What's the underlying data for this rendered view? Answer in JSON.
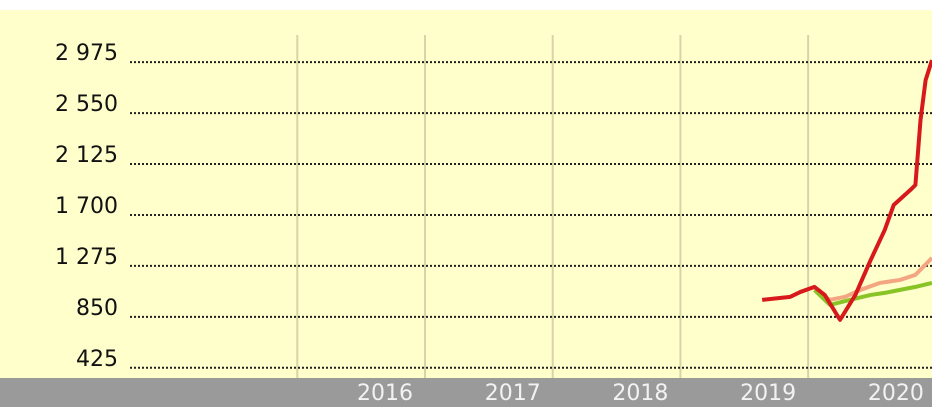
{
  "chart_data": {
    "type": "line",
    "xlim": [
      2014.69,
      2020.97
    ],
    "xticks": [
      2016,
      2017,
      2018,
      2019,
      2020
    ],
    "ylim": [
      340,
      3410
    ],
    "yticks": [
      {
        "value": 425,
        "label": "425"
      },
      {
        "value": 850,
        "label": "850"
      },
      {
        "value": 1275,
        "label": "1 275"
      },
      {
        "value": 1700,
        "label": "1 700"
      },
      {
        "value": 2125,
        "label": "2 125"
      },
      {
        "value": 2550,
        "label": "2 550"
      },
      {
        "value": 2975,
        "label": "2 975"
      }
    ],
    "grid": true,
    "series": [
      {
        "color": "#f4a582",
        "x": [
          2020.05,
          2020.17,
          2020.29,
          2020.41,
          2020.56,
          2020.72,
          2020.84,
          2020.97
        ],
        "values": [
          1075,
          992,
          1017,
          1075,
          1133,
          1158,
          1200,
          1342
        ]
      },
      {
        "color": "#88c425",
        "x": [
          2020.05,
          2020.17,
          2020.33,
          2020.49,
          2020.6,
          2020.72,
          2020.84,
          2020.97
        ],
        "values": [
          1075,
          950,
          992,
          1033,
          1050,
          1075,
          1100,
          1133
        ]
      },
      {
        "color": "#d7191c",
        "x": [
          2019.64,
          2019.86,
          2019.94,
          2020.05,
          2020.13,
          2020.25,
          2020.37,
          2020.49,
          2020.6,
          2020.67,
          2020.8,
          2020.84,
          2020.88,
          2020.92,
          2020.97
        ],
        "values": [
          992,
          1017,
          1058,
          1100,
          1033,
          825,
          1033,
          1325,
          1575,
          1783,
          1908,
          1950,
          2492,
          2825,
          2992
        ]
      }
    ]
  }
}
